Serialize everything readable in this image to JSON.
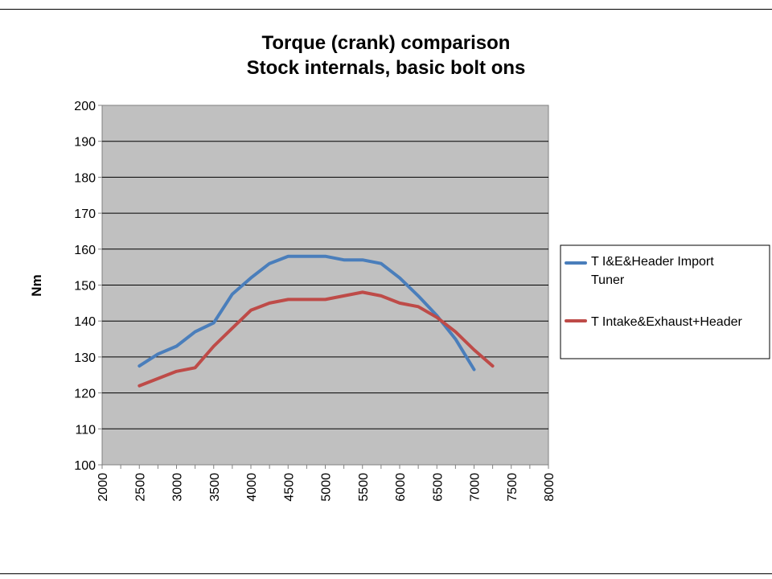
{
  "chart_data": {
    "type": "line",
    "title": [
      "Torque  (crank) comparison",
      "Stock internals, basic bolt ons"
    ],
    "ylabel": "Nm",
    "xlabel": "",
    "xlim": [
      2000,
      8000
    ],
    "ylim": [
      100,
      200
    ],
    "x_ticks": [
      "2000",
      "2500",
      "3000",
      "3500",
      "4000",
      "4500",
      "5000",
      "5500",
      "6000",
      "6500",
      "7000",
      "7500",
      "8000"
    ],
    "y_ticks": [
      "100",
      "110",
      "120",
      "130",
      "140",
      "150",
      "160",
      "170",
      "180",
      "190",
      "200"
    ],
    "grid": "horizontal",
    "legend_position": "right",
    "series": [
      {
        "name": "T I&E&Header Import Tuner",
        "color": "#4a7ebb",
        "points": [
          [
            2500,
            127.5
          ],
          [
            2750,
            130.8
          ],
          [
            3000,
            133
          ],
          [
            3250,
            137
          ],
          [
            3500,
            139.5
          ],
          [
            3750,
            147.5
          ],
          [
            4000,
            152
          ],
          [
            4250,
            156
          ],
          [
            4500,
            158
          ],
          [
            4750,
            158
          ],
          [
            5000,
            158
          ],
          [
            5250,
            157
          ],
          [
            5500,
            157
          ],
          [
            5750,
            156
          ],
          [
            6000,
            152
          ],
          [
            6250,
            147
          ],
          [
            6500,
            141.5
          ],
          [
            6750,
            135
          ],
          [
            7000,
            126.5
          ]
        ]
      },
      {
        "name": "T Intake&Exhaust+Header",
        "color": "#be4b48",
        "points": [
          [
            2500,
            122
          ],
          [
            2750,
            124
          ],
          [
            3000,
            126
          ],
          [
            3250,
            127
          ],
          [
            3500,
            133
          ],
          [
            3750,
            138
          ],
          [
            4000,
            143
          ],
          [
            4250,
            145
          ],
          [
            4500,
            146
          ],
          [
            4750,
            146
          ],
          [
            5000,
            146
          ],
          [
            5250,
            147
          ],
          [
            5500,
            148
          ],
          [
            5750,
            147
          ],
          [
            6000,
            145
          ],
          [
            6250,
            144
          ],
          [
            6500,
            141
          ],
          [
            6750,
            137
          ],
          [
            7000,
            132
          ],
          [
            7250,
            127.5
          ]
        ]
      }
    ]
  }
}
